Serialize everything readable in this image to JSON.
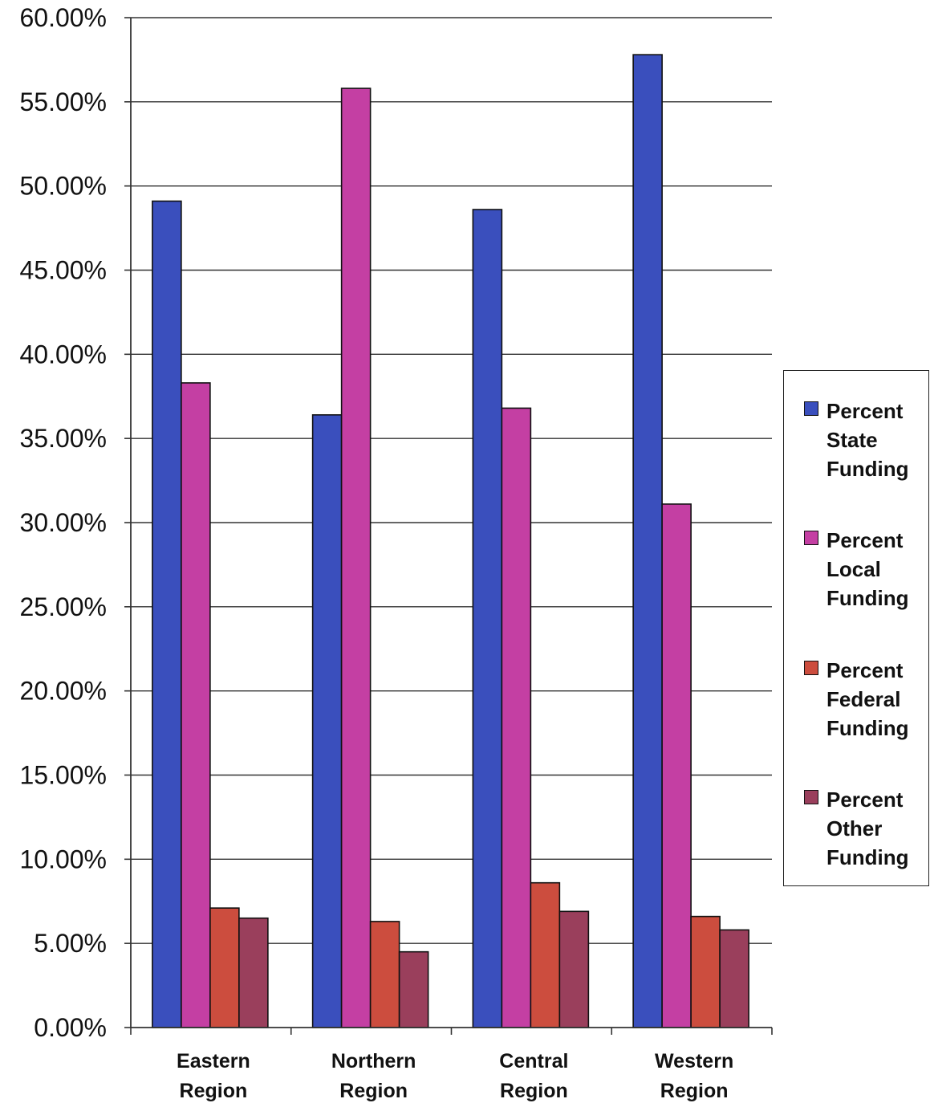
{
  "chart_data": {
    "type": "bar",
    "categories": [
      "Eastern\nRegion",
      "Northern\nRegion",
      "Central\nRegion",
      "Western\nRegion"
    ],
    "series": [
      {
        "name": "Percent\nState\nFunding",
        "color": "#3a4fbd",
        "values": [
          49.1,
          36.4,
          48.6,
          57.8
        ]
      },
      {
        "name": "Percent\nLocal\nFunding",
        "color": "#c43fa3",
        "values": [
          38.3,
          55.8,
          36.8,
          31.1
        ]
      },
      {
        "name": "Percent\nFederal\nFunding",
        "color": "#cc4d3e",
        "values": [
          7.1,
          6.3,
          8.6,
          6.6
        ]
      },
      {
        "name": "Percent\nOther\nFunding",
        "color": "#9a3f5c",
        "values": [
          6.5,
          4.5,
          6.9,
          5.8
        ]
      }
    ],
    "yticks": [
      "0.00%",
      "5.00%",
      "10.00%",
      "15.00%",
      "20.00%",
      "25.00%",
      "30.00%",
      "35.00%",
      "40.00%",
      "45.00%",
      "50.00%",
      "55.00%",
      "60.00%"
    ],
    "ylim": [
      0,
      60
    ],
    "grid": true,
    "legend_position": "right"
  }
}
